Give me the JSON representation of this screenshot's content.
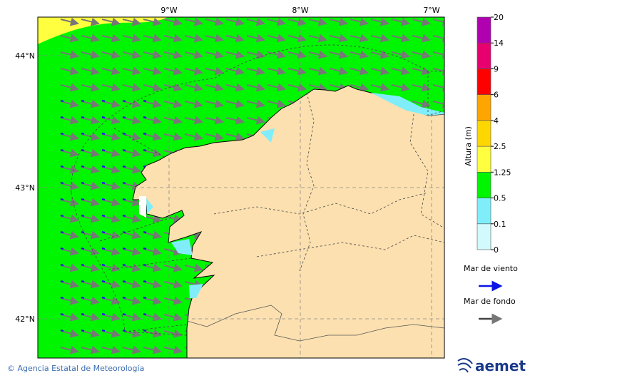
{
  "map": {
    "lon_ticks": [
      "9°W",
      "8°W",
      "7°W"
    ],
    "lat_ticks": [
      "44°N",
      "43°N",
      "42°N"
    ]
  },
  "colorbar": {
    "title": "Altura (m)",
    "levels": [
      0,
      0.1,
      0.5,
      1.25,
      2.5,
      4,
      6,
      9,
      14,
      20
    ],
    "colors": [
      "#d2fafc",
      "#80eefa",
      "#00f500",
      "#ffff40",
      "#ffd700",
      "#ffa500",
      "#ff0000",
      "#e8006e",
      "#b000b0"
    ]
  },
  "legend": {
    "items": [
      {
        "label": "Mar de viento",
        "color": "#0a14e6"
      },
      {
        "label": "Mar de fondo",
        "color": "#444444"
      }
    ]
  },
  "footer": {
    "credit": "© Agencia Estatal de Meteorología",
    "logo": "aemet"
  }
}
